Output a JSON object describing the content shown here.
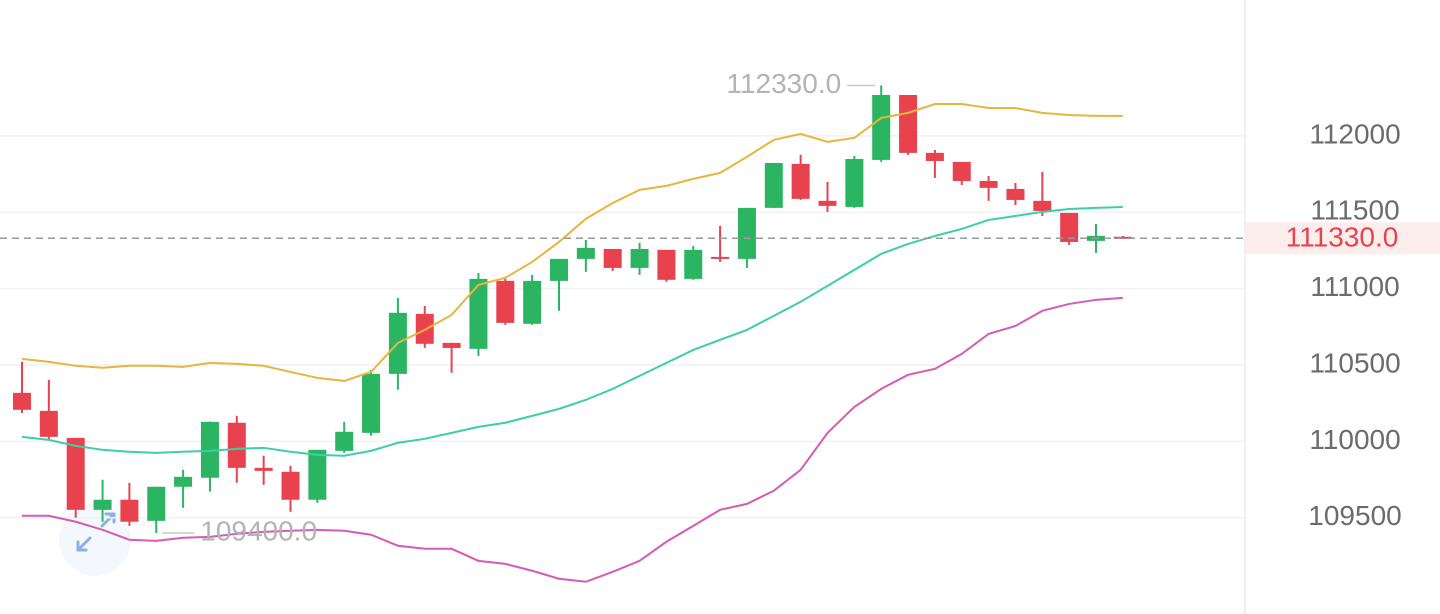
{
  "chart_data": {
    "type": "candlestick",
    "open": [
      110318,
      110200,
      110023,
      109552,
      109618,
      109480,
      109703,
      109762,
      110122,
      109827,
      109801,
      109618,
      109938,
      110056,
      110442,
      110835,
      110645,
      110606,
      111051,
      110770,
      111051,
      111195,
      111260,
      111136,
      111254,
      111064,
      111208,
      111195,
      111529,
      111817,
      111575,
      111535,
      111843,
      112268,
      111889,
      111830,
      111705,
      111653,
      111575,
      111496,
      111313,
      111340
    ],
    "high": [
      110521,
      110403,
      110023,
      109749,
      109729,
      109703,
      109814,
      110130,
      110167,
      109906,
      109840,
      109945,
      110128,
      110468,
      110940,
      110887,
      110645,
      111103,
      111064,
      111090,
      111195,
      111319,
      111260,
      111300,
      111254,
      111280,
      111411,
      111529,
      111823,
      111876,
      111699,
      111869,
      112330,
      112268,
      111908,
      111830,
      111738,
      111692,
      111764,
      111496,
      111424,
      111345
    ],
    "low": [
      110187,
      110010,
      109500,
      109474,
      109447,
      109400,
      109565,
      109670,
      109729,
      109716,
      109539,
      109598,
      109925,
      110037,
      110338,
      110612,
      110449,
      110560,
      110763,
      110763,
      110855,
      111110,
      111116,
      111090,
      111045,
      111058,
      111175,
      111136,
      111529,
      111581,
      111503,
      111529,
      111830,
      111876,
      111725,
      111679,
      111575,
      111548,
      111476,
      111287,
      111234,
      111325
    ],
    "close": [
      110207,
      110030,
      109552,
      109618,
      109474,
      109703,
      109768,
      110128,
      109827,
      109807,
      109618,
      109945,
      110063,
      110442,
      110842,
      110639,
      110612,
      111064,
      110776,
      111051,
      111195,
      111267,
      111136,
      111260,
      111058,
      111254,
      111195,
      111529,
      111823,
      111588,
      111542,
      111849,
      112268,
      111889,
      111836,
      111705,
      111660,
      111581,
      111509,
      111306,
      111346,
      111330
    ],
    "up_color": "#2bb563",
    "down_color": "#e8424f",
    "bands": [
      {
        "color": "#e8b53e",
        "values": [
          110540,
          110521,
          110495,
          110482,
          110495,
          110495,
          110488,
          110514,
          110508,
          110495,
          110455,
          110416,
          110396,
          110455,
          110645,
          110730,
          110828,
          111025,
          111071,
          111175,
          111306,
          111457,
          111561,
          111647,
          111673,
          111719,
          111758,
          111863,
          111974,
          112013,
          111961,
          111987,
          112118,
          112151,
          112209,
          112209,
          112183,
          112183,
          112151,
          112137,
          112131,
          112131
        ]
      },
      {
        "color": "#3ccfa6",
        "values": [
          110030,
          110010,
          109971,
          109945,
          109932,
          109925,
          109932,
          109938,
          109951,
          109958,
          109932,
          109912,
          109906,
          109938,
          109991,
          110017,
          110056,
          110095,
          110122,
          110167,
          110213,
          110272,
          110344,
          110429,
          110514,
          110599,
          110665,
          110730,
          110822,
          110914,
          111018,
          111123,
          111228,
          111293,
          111345,
          111391,
          111450,
          111476,
          111503,
          111522,
          111529,
          111535
        ]
      },
      {
        "color": "#d65ab8",
        "values": [
          109513,
          109513,
          109474,
          109421,
          109356,
          109349,
          109369,
          109375,
          109395,
          109408,
          109415,
          109421,
          109415,
          109389,
          109317,
          109297,
          109297,
          109218,
          109198,
          109153,
          109101,
          109081,
          109146,
          109218,
          109343,
          109447,
          109552,
          109591,
          109677,
          109814,
          110056,
          110226,
          110344,
          110436,
          110475,
          110573,
          110704,
          110756,
          110855,
          110900,
          110927,
          110940
        ]
      }
    ],
    "ylim": [
      108870,
      112890
    ],
    "yticks": [
      109500,
      110000,
      110500,
      111000,
      111500,
      112000
    ],
    "grid": true,
    "max_label": {
      "value": 112330,
      "label": "112330.0"
    },
    "min_label": {
      "value": 109400,
      "label": "109400.0"
    },
    "last_price": {
      "value": 111330,
      "label": "111330.0"
    }
  }
}
